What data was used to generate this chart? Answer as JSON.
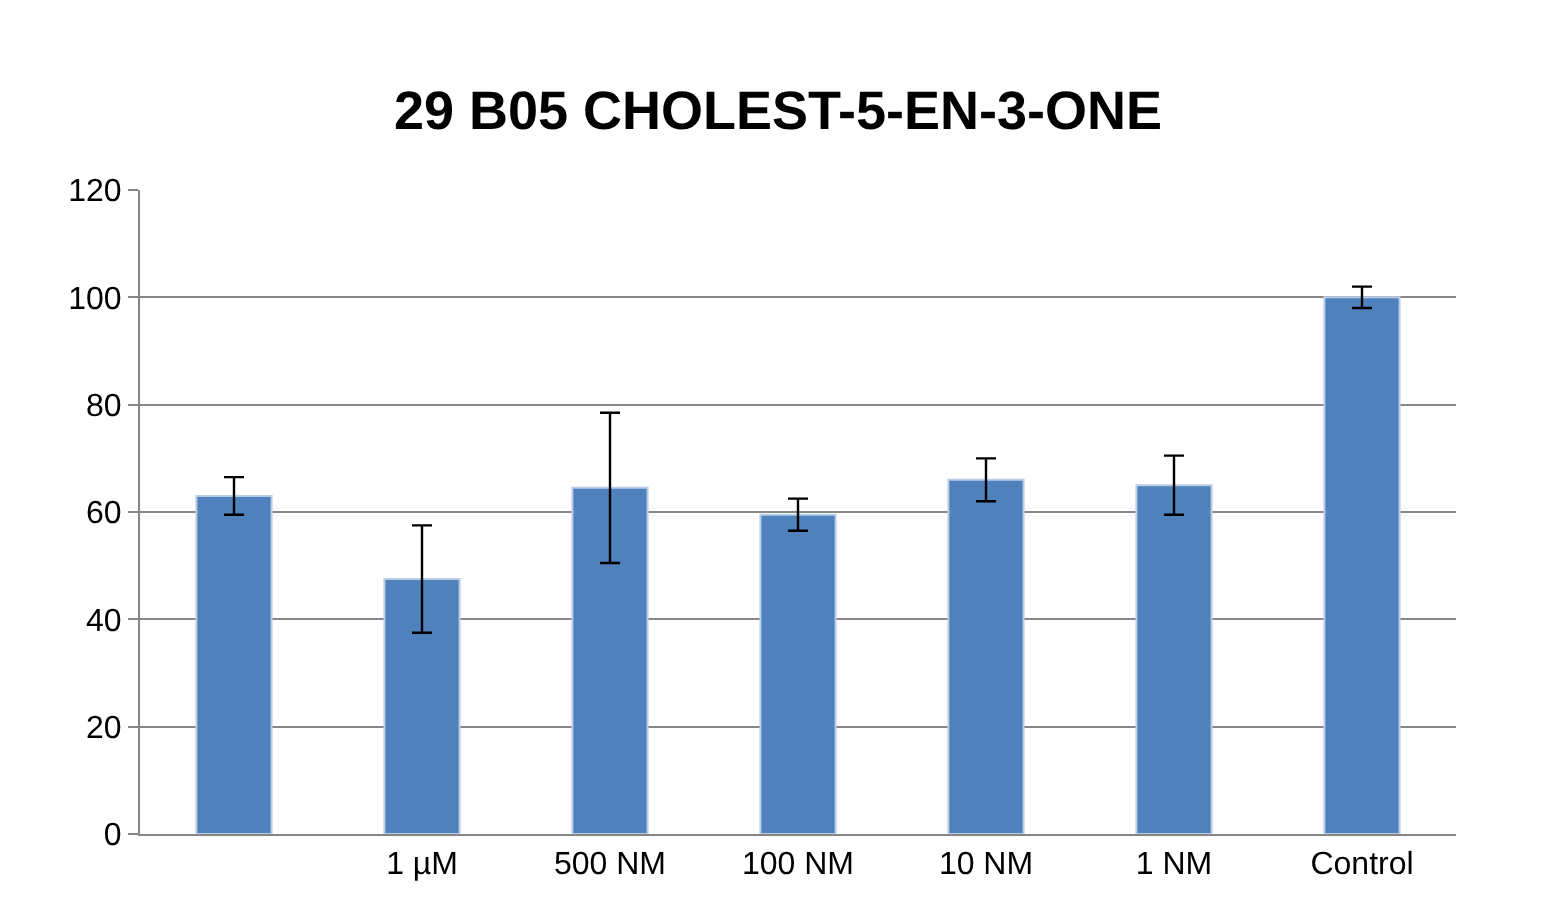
{
  "chart_data": {
    "type": "bar",
    "title": "29 B05 CHOLEST-5-EN-3-ONE",
    "categories": [
      null,
      "1 µM",
      "500 NM",
      "100 NM",
      "10 NM",
      "1 NM",
      "Control"
    ],
    "values": [
      63,
      47.5,
      64.5,
      59.5,
      66,
      65,
      100
    ],
    "errors": [
      3.5,
      10,
      14,
      3,
      4,
      5.5,
      2
    ],
    "color": "#4f81bd",
    "ylim": [
      0,
      120
    ],
    "yticks": [
      0,
      20,
      40,
      60,
      80,
      100,
      120
    ],
    "grid": "y"
  }
}
